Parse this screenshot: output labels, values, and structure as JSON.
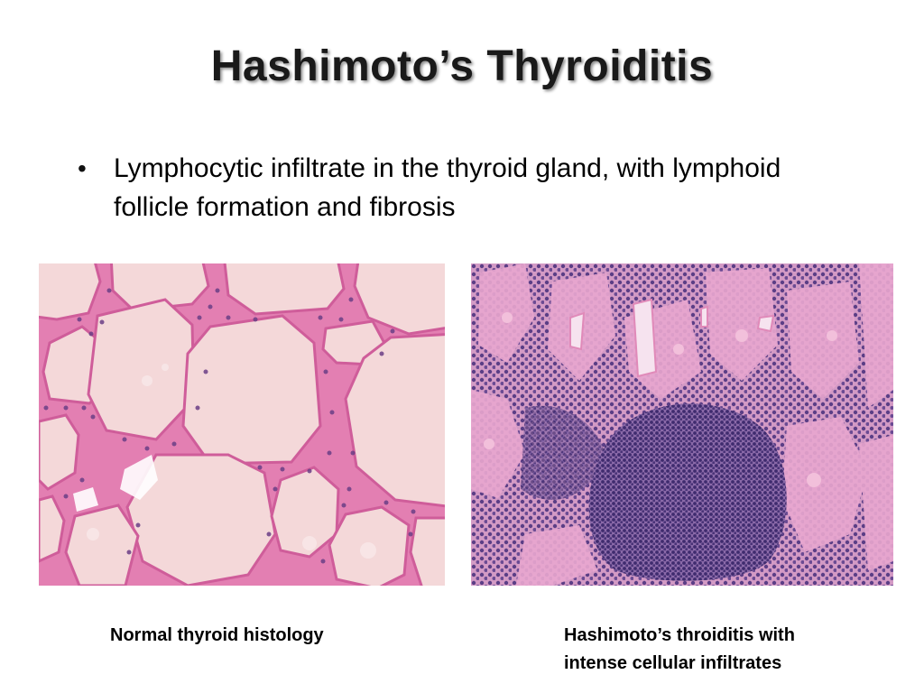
{
  "slide": {
    "title": "Hashimoto’s Thyroiditis",
    "bullet": "Lymphocytic  infiltrate in the thyroid gland, with lymphoid follicle formation and fibrosis",
    "bullet_icon": "bullet-dot",
    "captions": {
      "left": "Normal thyroid histology",
      "right_line1": "Hashimoto’s throiditis with",
      "right_line2": "intense cellular infiltrates"
    },
    "colors": {
      "colloid": "#f4d7d8",
      "stroma": "#e27fb0",
      "nuclei": "#5a3f86",
      "infiltrate_bg": "#d7a2c9"
    }
  }
}
